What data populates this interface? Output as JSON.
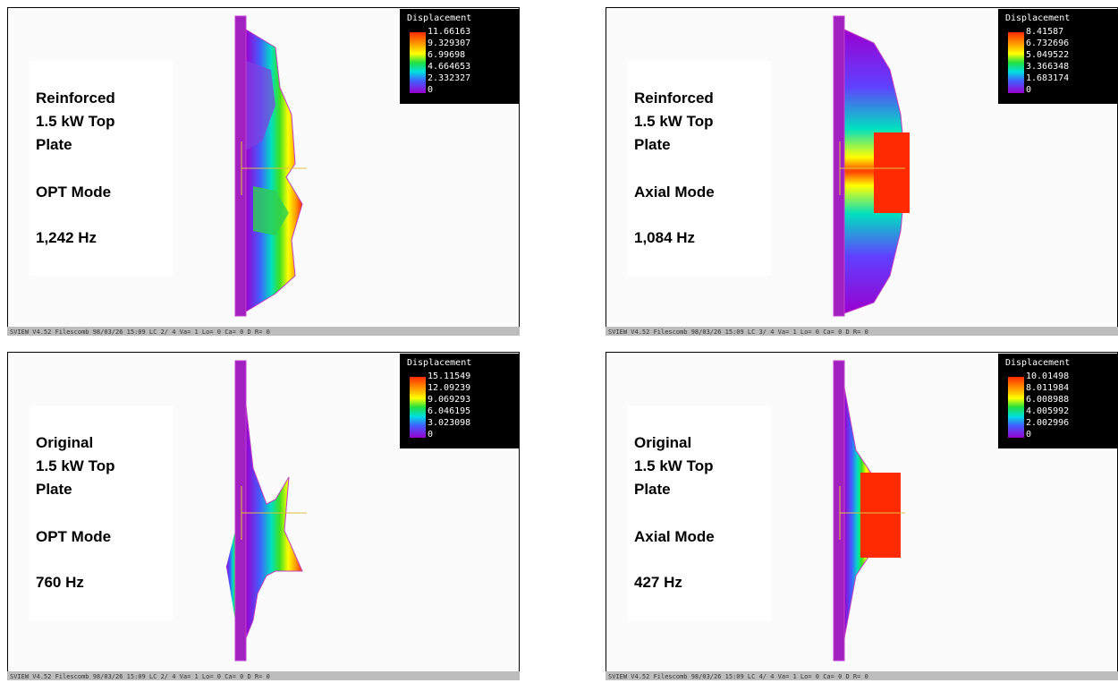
{
  "panels": [
    {
      "label_lines": [
        "Reinforced",
        "1.5 kW Top",
        "Plate"
      ],
      "mode": "OPT Mode",
      "frequency": "1,242 Hz",
      "legend": {
        "title": "Displacement",
        "values": [
          "11.66163",
          "9.329307",
          "6.99698",
          "4.664653",
          "2.332327",
          "0"
        ]
      },
      "status": "SVIEW V4.52 Filescomb 98/03/26 15:09   LC 2/ 4 Va= 1 Lo= 0 Ca= 0 D R= 0"
    },
    {
      "label_lines": [
        "Reinforced",
        "1.5 kW Top",
        "Plate"
      ],
      "mode": "Axial Mode",
      "frequency": "1,084 Hz",
      "legend": {
        "title": "Displacement",
        "values": [
          "8.41587",
          "6.732696",
          "5.049522",
          "3.366348",
          "1.683174",
          "0"
        ]
      },
      "status": "SVIEW V4.52 Filescomb 98/03/26 15:09   LC 3/ 4 Va= 1 Lo= 0 Ca= 0 D R= 0"
    },
    {
      "label_lines": [
        "Original",
        "1.5 kW Top",
        "Plate"
      ],
      "mode": "OPT Mode",
      "frequency": "760 Hz",
      "legend": {
        "title": "Displacement",
        "values": [
          "15.11549",
          "12.09239",
          "9.069293",
          "6.046195",
          "3.023098",
          "0"
        ]
      },
      "status": "SVIEW V4.52 Filescomb 98/03/26 15:09   LC 2/ 4 Va= 1 Lo= 0 Ca= 0 D R= 0"
    },
    {
      "label_lines": [
        "Original",
        "1.5 kW Top",
        "Plate"
      ],
      "mode": "Axial Mode",
      "frequency": "427 Hz",
      "legend": {
        "title": "Displacement",
        "values": [
          "10.01498",
          "8.011984",
          "6.008988",
          "4.005992",
          "2.002996",
          "0"
        ]
      },
      "status": "SVIEW V4.52 Filescomb 98/03/26 15:09   LC 4/ 4 Va= 1 Lo= 0 Ca= 0 D R= 0"
    }
  ]
}
